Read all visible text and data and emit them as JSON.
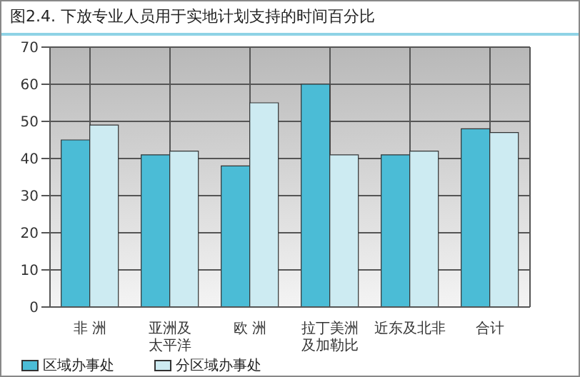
{
  "chart_data": {
    "type": "bar",
    "title": "图2.4. 下放专业人员用于实地计划支持的时间百分比",
    "categories": [
      "非 洲",
      "亚洲及太平洋",
      "欧 洲",
      "拉丁美洲及加勒比",
      "近东及北非",
      "合计"
    ],
    "series": [
      {
        "name": "区域办事处",
        "color": "#4bbcd6",
        "values": [
          45,
          41,
          38,
          60,
          41,
          48
        ]
      },
      {
        "name": "分区域办事处",
        "color": "#cdebf2",
        "values": [
          49,
          42,
          55,
          41,
          42,
          47
        ]
      }
    ],
    "ylim": [
      0,
      70
    ],
    "yticks": [
      0,
      10,
      20,
      30,
      40,
      50,
      60,
      70
    ],
    "grid": true,
    "legend": "bottom left"
  }
}
